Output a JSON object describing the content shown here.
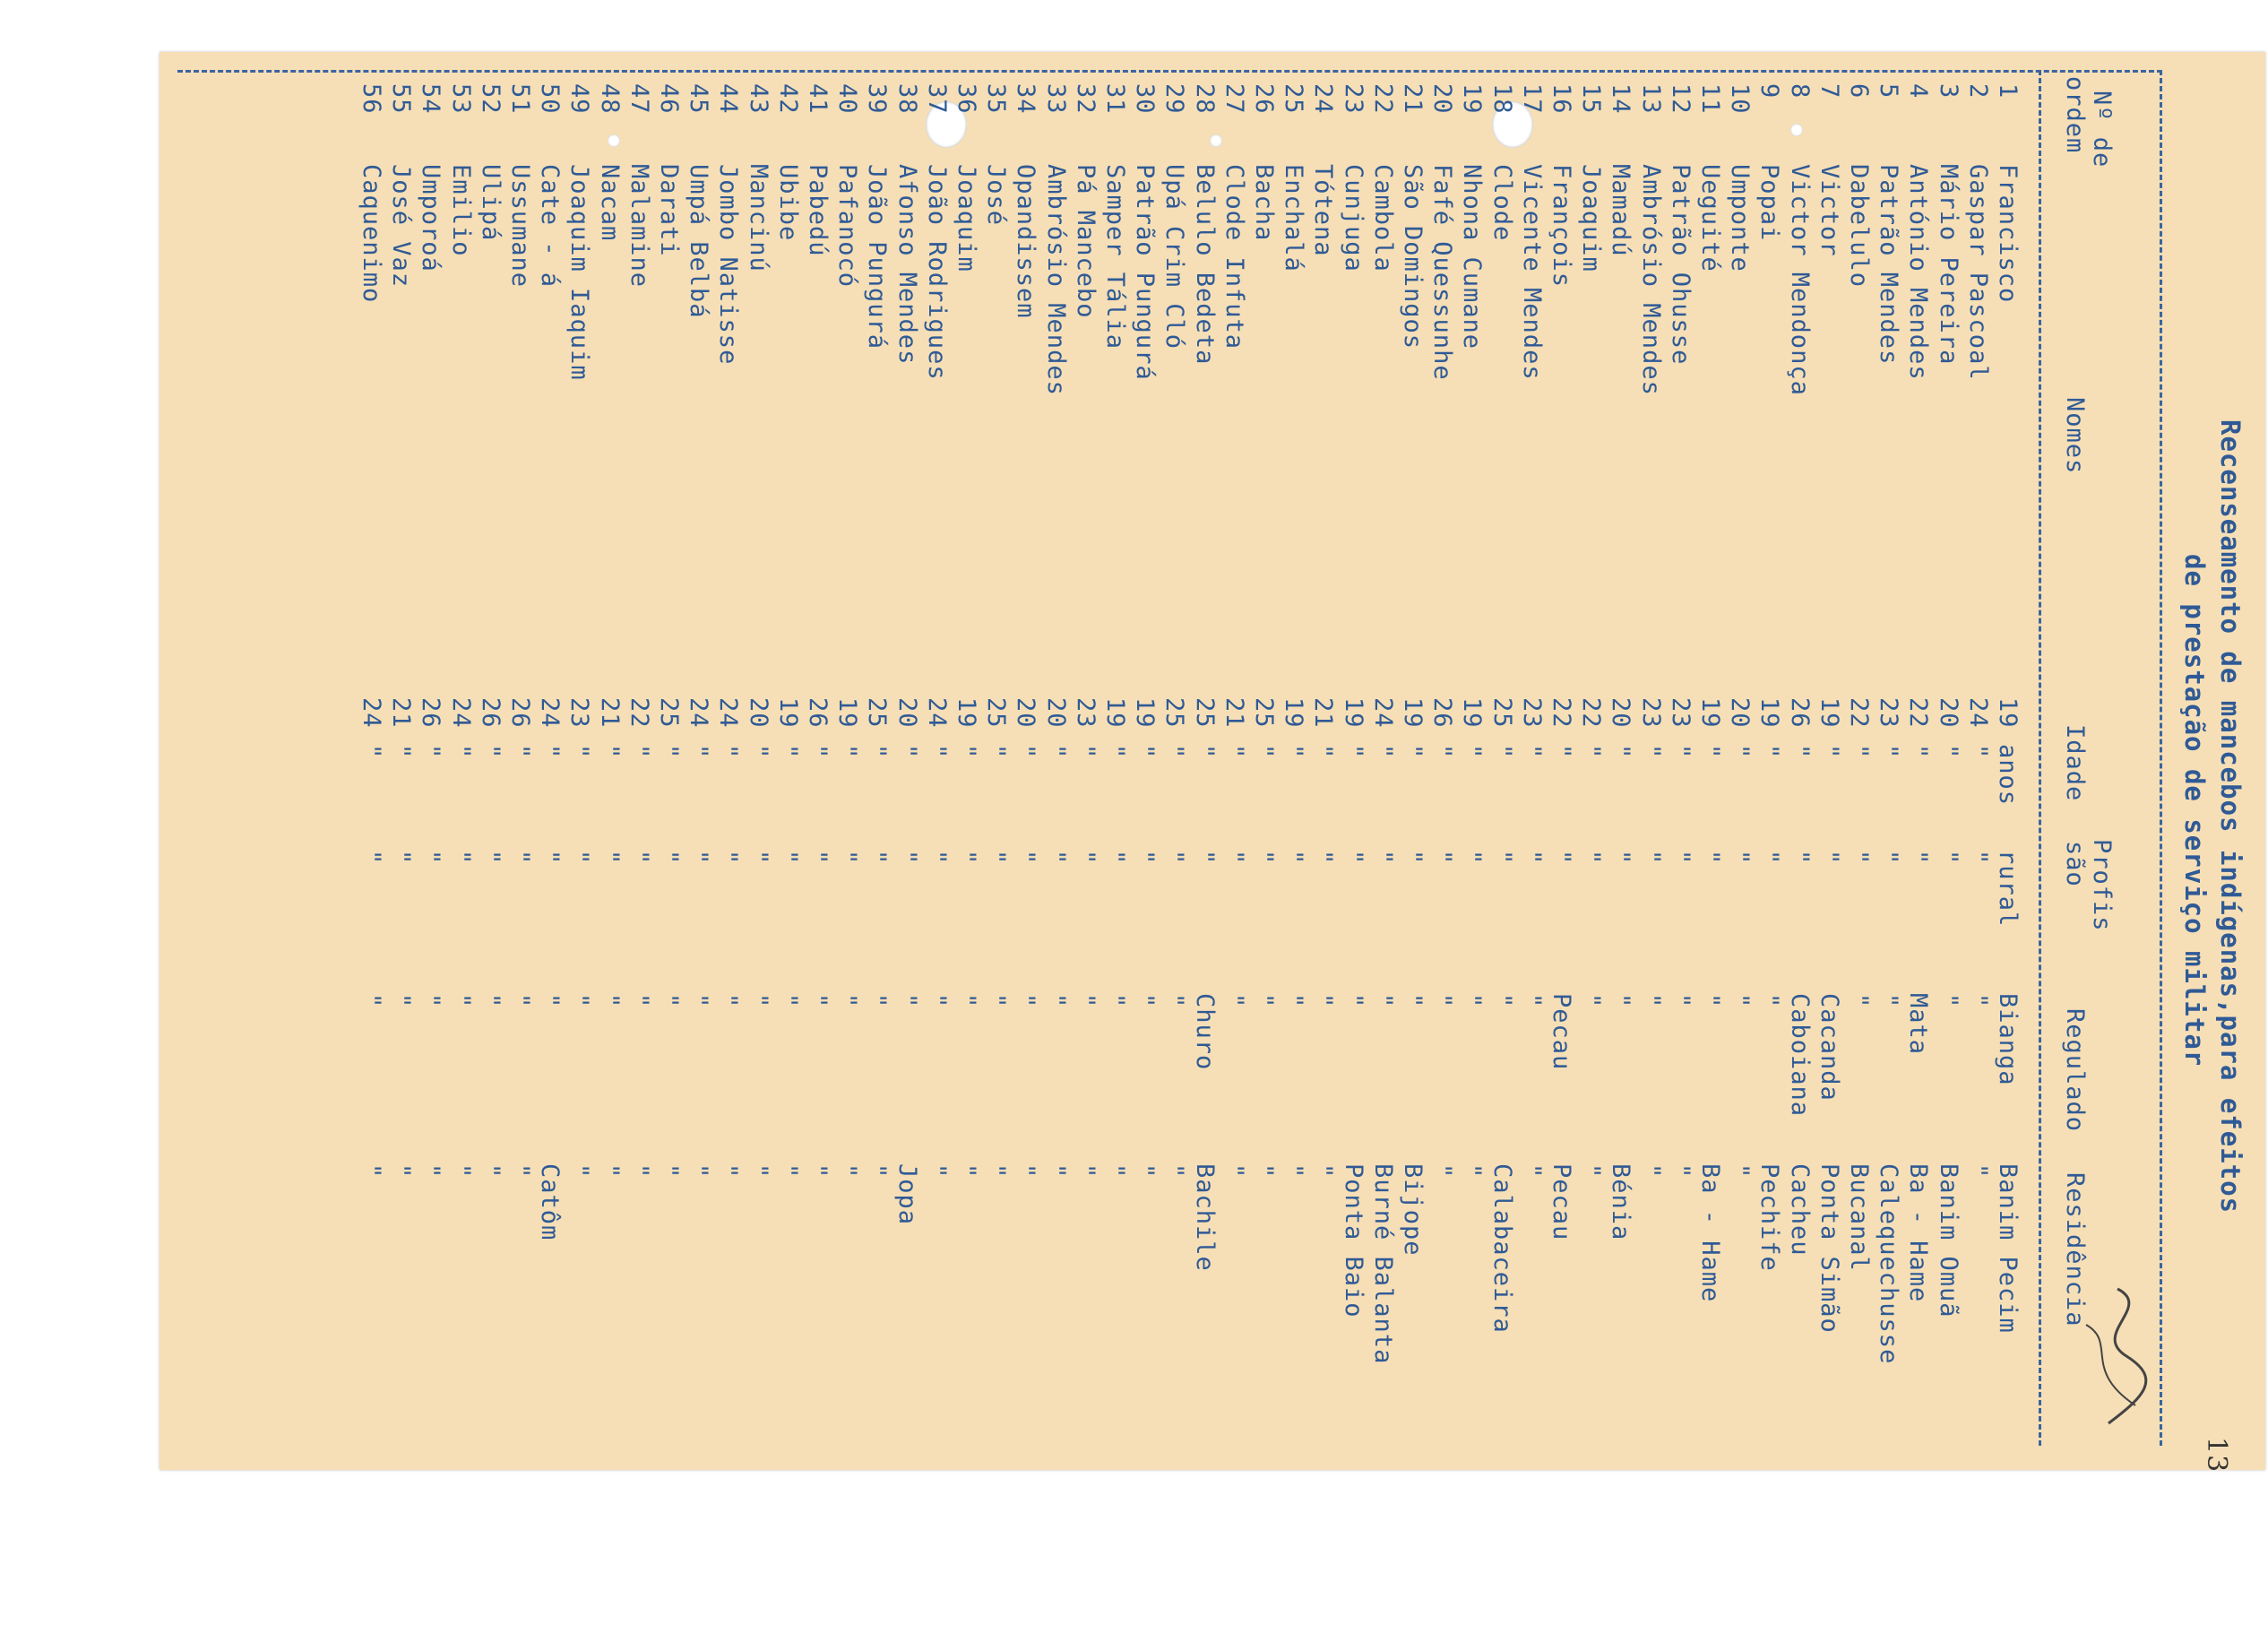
{
  "title_line1": "Recenseamento de mancebos indígenas,para efeitos",
  "title_line2": "de prestação de serviço militar",
  "page_number": "13",
  "headers": {
    "ordem_line1": "Nº de",
    "ordem_line2": "ordem",
    "nomes": "Nomes",
    "idade": "Idade",
    "profissao_line1": "Profis",
    "profissao_line2": "são",
    "regulado": "Regulado",
    "residencia": "Residência"
  },
  "rows": [
    {
      "n": "1",
      "name": "Francisco",
      "age": "19",
      "idade_unit": "anos",
      "prof": "rural",
      "reg": "Bianga",
      "res": "Banim Pecim"
    },
    {
      "n": "2",
      "name": "Gaspar Pascoal",
      "age": "24",
      "idade_unit": "\"",
      "prof": "\"",
      "reg": "\"",
      "res": "\""
    },
    {
      "n": "3",
      "name": "Mário Pereira",
      "age": "20",
      "idade_unit": "\"",
      "prof": "\"",
      "reg": "\"",
      "res": "Banim Omuã"
    },
    {
      "n": "4",
      "name": "António Mendes",
      "age": "22",
      "idade_unit": "\"",
      "prof": "\"",
      "reg": "Mata",
      "res": "Ba - Hame"
    },
    {
      "n": "5",
      "name": "Patrão Mendes",
      "age": "23",
      "idade_unit": "\"",
      "prof": "\"",
      "reg": "\"",
      "res": "Calequechusse"
    },
    {
      "n": "6",
      "name": "Dabelulo",
      "age": "22",
      "idade_unit": "\"",
      "prof": "\"",
      "reg": "\"",
      "res": "Bucanal"
    },
    {
      "n": "7",
      "name": "Victor",
      "age": "19",
      "idade_unit": "\"",
      "prof": "\"",
      "reg": "Cacanda",
      "res": "Ponta Simão"
    },
    {
      "n": "8",
      "name": "Victor Mendonça",
      "age": "26",
      "idade_unit": "\"",
      "prof": "\"",
      "reg": "Caboiana",
      "res": "Cacheu"
    },
    {
      "n": "9",
      "name": "Popai",
      "age": "19",
      "idade_unit": "\"",
      "prof": "\"",
      "reg": "\"",
      "res": "Pechife"
    },
    {
      "n": "10",
      "name": "Umponte",
      "age": "20",
      "idade_unit": "\"",
      "prof": "\"",
      "reg": "\"",
      "res": "\""
    },
    {
      "n": "11",
      "name": "Ueguité",
      "age": "19",
      "idade_unit": "\"",
      "prof": "\"",
      "reg": "\"",
      "res": "Ba - Hame"
    },
    {
      "n": "12",
      "name": "Patrão Ohusse",
      "age": "23",
      "idade_unit": "\"",
      "prof": "\"",
      "reg": "\"",
      "res": "\""
    },
    {
      "n": "13",
      "name": "Ambrósio Mendes",
      "age": "23",
      "idade_unit": "\"",
      "prof": "\"",
      "reg": "\"",
      "res": "\""
    },
    {
      "n": "14",
      "name": "Mamadú",
      "age": "20",
      "idade_unit": "\"",
      "prof": "\"",
      "reg": "\"",
      "res": "Bénia"
    },
    {
      "n": "15",
      "name": "Joaquim",
      "age": "22",
      "idade_unit": "\"",
      "prof": "\"",
      "reg": "\"",
      "res": "\""
    },
    {
      "n": "16",
      "name": "François",
      "age": "22",
      "idade_unit": "\"",
      "prof": "\"",
      "reg": "Pecau",
      "res": "Pecau"
    },
    {
      "n": "17",
      "name": "Vicente Mendes",
      "age": "23",
      "idade_unit": "\"",
      "prof": "\"",
      "reg": "\"",
      "res": "\""
    },
    {
      "n": "18",
      "name": "Clode",
      "age": "25",
      "idade_unit": "\"",
      "prof": "\"",
      "reg": "\"",
      "res": "Calabaceira"
    },
    {
      "n": "19",
      "name": "Nhona Cumane",
      "age": "19",
      "idade_unit": "\"",
      "prof": "\"",
      "reg": "\"",
      "res": "\""
    },
    {
      "n": "20",
      "name": "Fafé Quessunhe",
      "age": "26",
      "idade_unit": "\"",
      "prof": "\"",
      "reg": "\"",
      "res": "\""
    },
    {
      "n": "21",
      "name": "São Domingos",
      "age": "19",
      "idade_unit": "\"",
      "prof": "\"",
      "reg": "\"",
      "res": "Bijope"
    },
    {
      "n": "22",
      "name": "Cambola",
      "age": "24",
      "idade_unit": "\"",
      "prof": "\"",
      "reg": "\"",
      "res": "Burné Balanta"
    },
    {
      "n": "23",
      "name": "Cunjuga",
      "age": "19",
      "idade_unit": "\"",
      "prof": "\"",
      "reg": "\"",
      "res": "Ponta Baio"
    },
    {
      "n": "24",
      "name": "Tótena",
      "age": "21",
      "idade_unit": "\"",
      "prof": "\"",
      "reg": "\"",
      "res": "\""
    },
    {
      "n": "25",
      "name": "Enchalá",
      "age": "19",
      "idade_unit": "\"",
      "prof": "\"",
      "reg": "\"",
      "res": "\""
    },
    {
      "n": "26",
      "name": "Bacha",
      "age": "25",
      "idade_unit": "\"",
      "prof": "\"",
      "reg": "\"",
      "res": "\""
    },
    {
      "n": "27",
      "name": "Clode Infuta",
      "age": "21",
      "idade_unit": "\"",
      "prof": "\"",
      "reg": "\"",
      "res": "\""
    },
    {
      "n": "28",
      "name": "Belulo Bedeta",
      "age": "25",
      "idade_unit": "\"",
      "prof": "\"",
      "reg": "Churo",
      "res": "Bachile"
    },
    {
      "n": "29",
      "name": "Upá Crim Cló",
      "age": "25",
      "idade_unit": "\"",
      "prof": "\"",
      "reg": "\"",
      "res": "\""
    },
    {
      "n": "30",
      "name": "Patrão Pungurá",
      "age": "19",
      "idade_unit": "\"",
      "prof": "\"",
      "reg": "\"",
      "res": "\""
    },
    {
      "n": "31",
      "name": "Samper Tália",
      "age": "19",
      "idade_unit": "\"",
      "prof": "\"",
      "reg": "\"",
      "res": "\""
    },
    {
      "n": "32",
      "name": "Pá Mancebo",
      "age": "23",
      "idade_unit": "\"",
      "prof": "\"",
      "reg": "\"",
      "res": "\""
    },
    {
      "n": "33",
      "name": "Ambrósio Mendes",
      "age": "20",
      "idade_unit": "\"",
      "prof": "\"",
      "reg": "\"",
      "res": "\""
    },
    {
      "n": "34",
      "name": "Opandissem",
      "age": "20",
      "idade_unit": "\"",
      "prof": "\"",
      "reg": "\"",
      "res": "\""
    },
    {
      "n": "35",
      "name": "José",
      "age": "25",
      "idade_unit": "\"",
      "prof": "\"",
      "reg": "\"",
      "res": "\""
    },
    {
      "n": "36",
      "name": "Joaquim",
      "age": "19",
      "idade_unit": "\"",
      "prof": "\"",
      "reg": "\"",
      "res": "\""
    },
    {
      "n": "37",
      "name": "João Rodrigues",
      "age": "24",
      "idade_unit": "\"",
      "prof": "\"",
      "reg": "\"",
      "res": "\""
    },
    {
      "n": "38",
      "name": "Afonso Mendes",
      "age": "20",
      "idade_unit": "\"",
      "prof": "\"",
      "reg": "\"",
      "res": "Jopa"
    },
    {
      "n": "39",
      "name": "João Pungurá",
      "age": "25",
      "idade_unit": "\"",
      "prof": "\"",
      "reg": "\"",
      "res": "\""
    },
    {
      "n": "40",
      "name": "Pafanocó",
      "age": "19",
      "idade_unit": "\"",
      "prof": "\"",
      "reg": "\"",
      "res": "\""
    },
    {
      "n": "41",
      "name": "Pabedú",
      "age": "26",
      "idade_unit": "\"",
      "prof": "\"",
      "reg": "\"",
      "res": "\""
    },
    {
      "n": "42",
      "name": "Ubibe",
      "age": "19",
      "idade_unit": "\"",
      "prof": "\"",
      "reg": "\"",
      "res": "\""
    },
    {
      "n": "43",
      "name": "Mancinú",
      "age": "20",
      "idade_unit": "\"",
      "prof": "\"",
      "reg": "\"",
      "res": "\""
    },
    {
      "n": "44",
      "name": "Jombo Natisse",
      "age": "24",
      "idade_unit": "\"",
      "prof": "\"",
      "reg": "\"",
      "res": "\""
    },
    {
      "n": "45",
      "name": "Umpá Belbá",
      "age": "24",
      "idade_unit": "\"",
      "prof": "\"",
      "reg": "\"",
      "res": "\""
    },
    {
      "n": "46",
      "name": "Darati",
      "age": "25",
      "idade_unit": "\"",
      "prof": "\"",
      "reg": "\"",
      "res": "\""
    },
    {
      "n": "47",
      "name": "Malamine",
      "age": "22",
      "idade_unit": "\"",
      "prof": "\"",
      "reg": "\"",
      "res": "\""
    },
    {
      "n": "48",
      "name": "Nacam",
      "age": "21",
      "idade_unit": "\"",
      "prof": "\"",
      "reg": "\"",
      "res": "\""
    },
    {
      "n": "49",
      "name": "Joaquim Iaquim",
      "age": "23",
      "idade_unit": "\"",
      "prof": "\"",
      "reg": "\"",
      "res": "\""
    },
    {
      "n": "50",
      "name": "Cate - á",
      "age": "24",
      "idade_unit": "\"",
      "prof": "\"",
      "reg": "\"",
      "res": "Catôm"
    },
    {
      "n": "51",
      "name": "Ussumane",
      "age": "26",
      "idade_unit": "\"",
      "prof": "\"",
      "reg": "\"",
      "res": "\""
    },
    {
      "n": "52",
      "name": "Ulipá",
      "age": "26",
      "idade_unit": "\"",
      "prof": "\"",
      "reg": "\"",
      "res": "\""
    },
    {
      "n": "53",
      "name": "Emilio",
      "age": "24",
      "idade_unit": "\"",
      "prof": "\"",
      "reg": "\"",
      "res": "\""
    },
    {
      "n": "54",
      "name": "Umporoá",
      "age": "26",
      "idade_unit": "\"",
      "prof": "\"",
      "reg": "\"",
      "res": "\""
    },
    {
      "n": "55",
      "name": "José Vaz",
      "age": "21",
      "idade_unit": "\"",
      "prof": "\"",
      "reg": "\"",
      "res": "\""
    },
    {
      "n": "56",
      "name": "Caquenimo",
      "age": "24",
      "idade_unit": "\"",
      "prof": "\"",
      "reg": "\"",
      "res": "\""
    }
  ]
}
